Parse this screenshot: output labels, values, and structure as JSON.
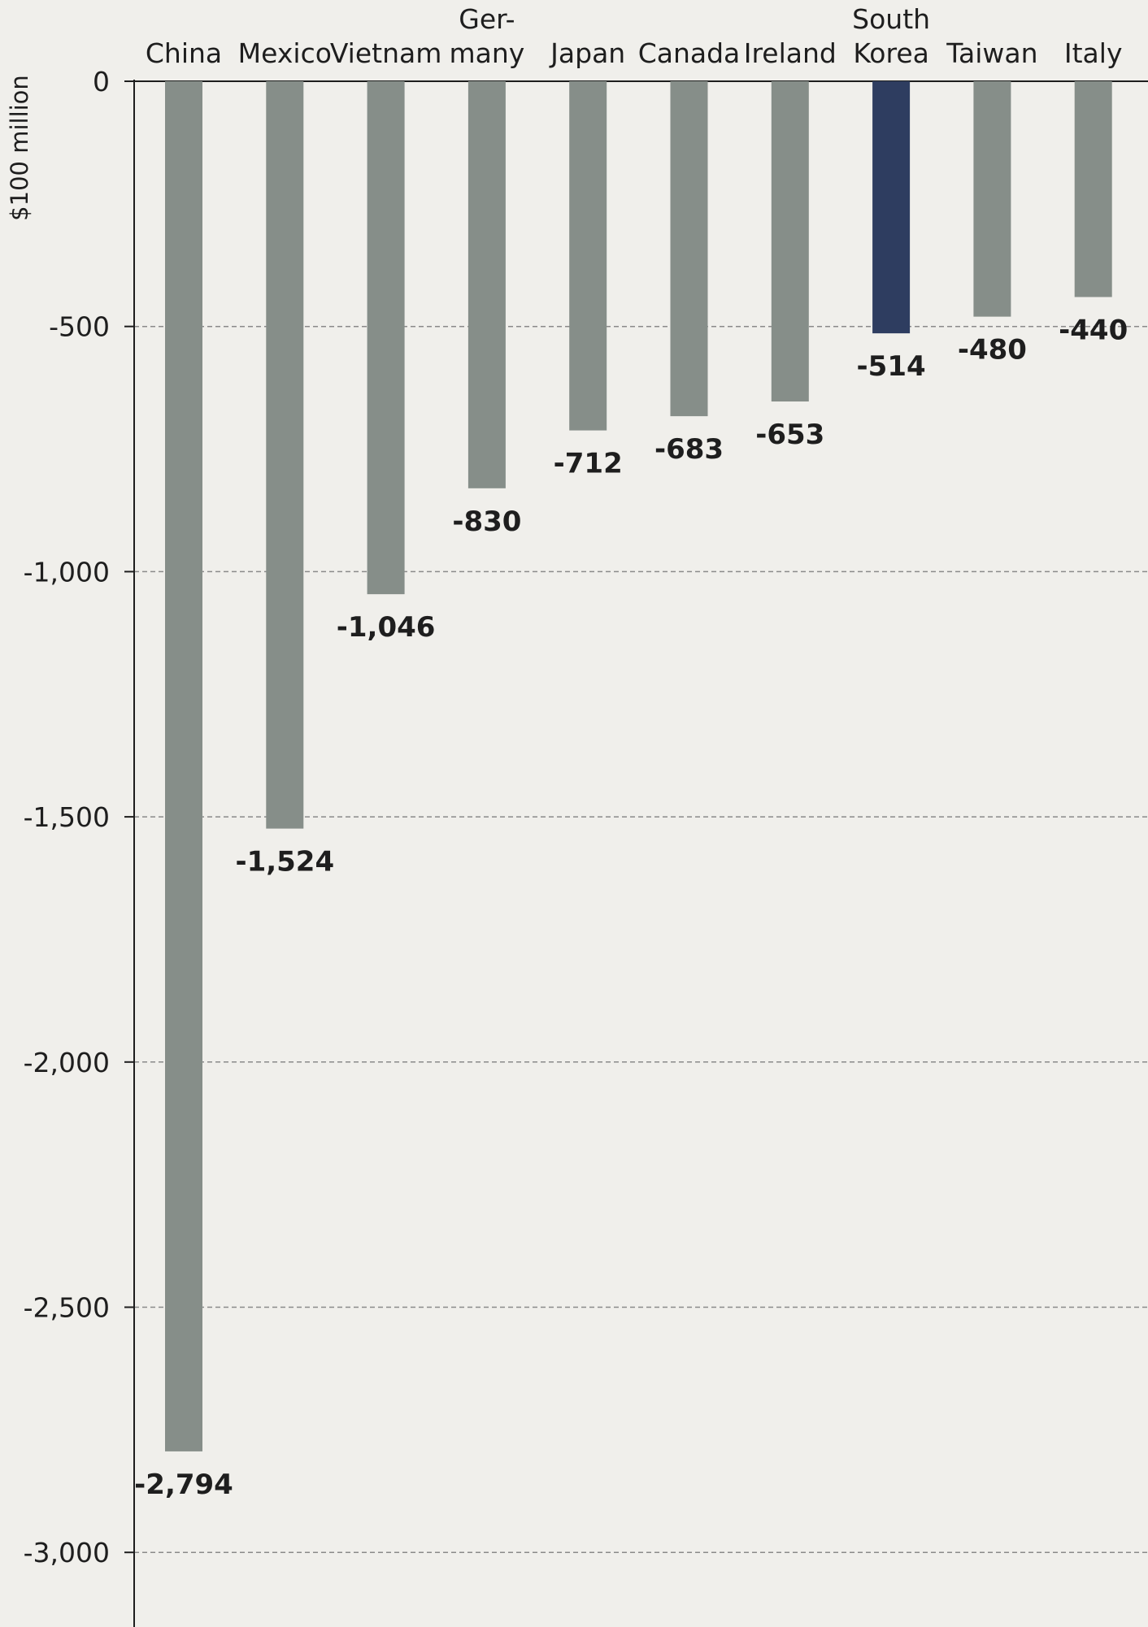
{
  "chart_data": {
    "type": "bar",
    "ylabel": "$100 million",
    "categories": [
      [
        "China"
      ],
      [
        "Mexico"
      ],
      [
        "Vietnam"
      ],
      [
        "Ger-",
        "many"
      ],
      [
        "Japan"
      ],
      [
        "Canada"
      ],
      [
        "Ireland"
      ],
      [
        "South",
        "Korea"
      ],
      [
        "Taiwan"
      ],
      [
        "Italy"
      ]
    ],
    "values": [
      -2794,
      -1524,
      -1046,
      -830,
      -712,
      -683,
      -653,
      -514,
      -480,
      -440
    ],
    "value_labels": [
      "-2,794",
      "-1,524",
      "-1,046",
      "-830",
      "-712",
      "-683",
      "-653",
      "-514",
      "-480",
      "-440"
    ],
    "ylim": [
      -3200,
      0
    ],
    "yticks": [
      0,
      -500,
      -1000,
      -1500,
      -2000,
      -2500,
      -3000
    ],
    "ytick_labels": [
      "0",
      "-500",
      "-1,000",
      "-1,500",
      "-2,000",
      "-2,500",
      "-3,000"
    ],
    "grid": true,
    "colors": {
      "default_bar": "#868e89",
      "highlight_bar": "#2e3d60"
    },
    "highlight_index": 7
  }
}
